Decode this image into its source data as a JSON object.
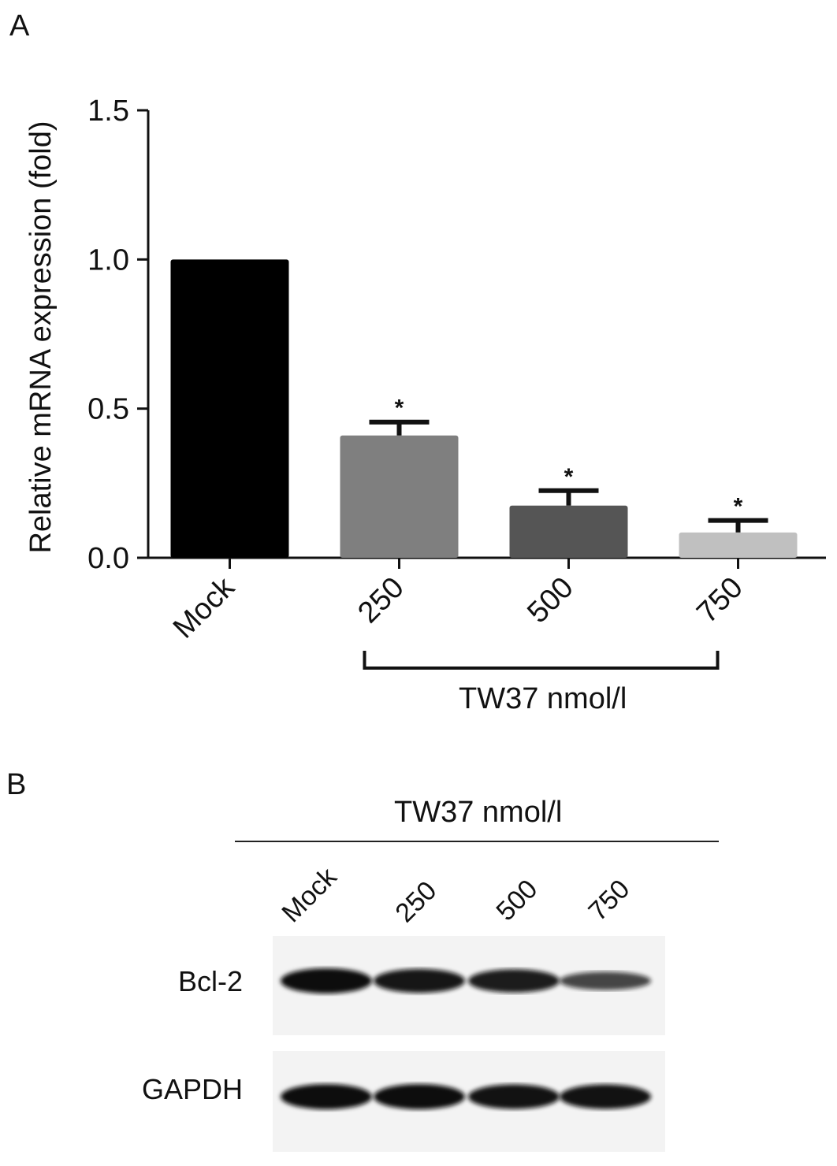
{
  "panel_a": {
    "letter": "A",
    "group_label": "TW37 nmol/l"
  },
  "panel_b": {
    "letter": "B",
    "header": "TW37 nmol/l",
    "lanes": [
      "Mock",
      "250",
      "500",
      "750"
    ],
    "rows": [
      {
        "label": "Bcl-2",
        "band_intensity": [
          1.0,
          0.9,
          0.85,
          0.45
        ]
      },
      {
        "label": "GAPDH",
        "band_intensity": [
          1.0,
          1.0,
          0.95,
          0.95
        ]
      }
    ],
    "band_color": "#111111"
  },
  "chart_data": {
    "type": "bar",
    "categories": [
      "Mock",
      "250",
      "500",
      "750"
    ],
    "values": [
      1.0,
      0.41,
      0.175,
      0.085
    ],
    "error": [
      0,
      0.045,
      0.05,
      0.04
    ],
    "significance": [
      "",
      "*",
      "*",
      "*"
    ],
    "colors": [
      "#000000",
      "#7f7f7f",
      "#555555",
      "#c0c0c0"
    ],
    "ylabel": "Relative mRNA expression (fold)",
    "xlabel": "",
    "ylim": [
      0,
      1.5
    ],
    "yticks": [
      0.0,
      0.5,
      1.0,
      1.5
    ],
    "ytick_labels": [
      "0.0",
      "0.5",
      "1.0",
      "1.5"
    ]
  }
}
